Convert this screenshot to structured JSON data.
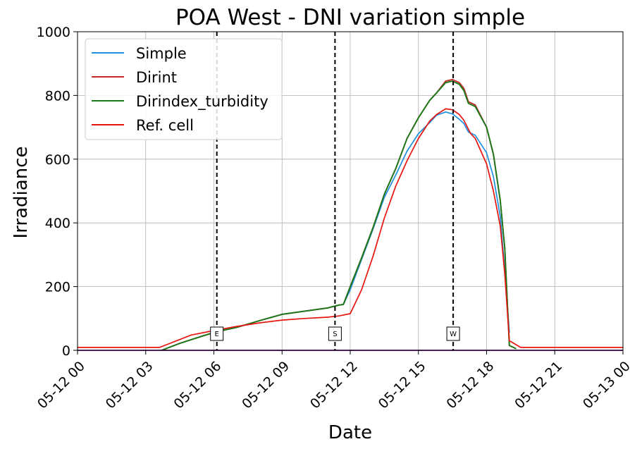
{
  "chart_data": {
    "type": "line",
    "title": "POA West - DNI variation simple",
    "xlabel": "Date",
    "ylabel": "Irradiance",
    "ylim": [
      0,
      1000
    ],
    "xlim": [
      "05-12 00:00",
      "05-13 00:00"
    ],
    "grid": true,
    "legend_position": "upper-left",
    "x_ticks": [
      "05-12 00",
      "05-12 03",
      "05-12 06",
      "05-12 09",
      "05-12 12",
      "05-12 15",
      "05-12 18",
      "05-12 21",
      "05-13 00"
    ],
    "y_ticks": [
      "0",
      "200",
      "400",
      "600",
      "800",
      "1000"
    ],
    "x_unit_note": "hours after 05-12 00",
    "series": [
      {
        "name": "Simple",
        "color": "#1f8fe0",
        "points": [
          [
            3.7,
            0
          ],
          [
            4.5,
            22
          ],
          [
            5.5,
            45
          ],
          [
            6.1,
            58
          ],
          [
            7,
            72
          ],
          [
            8,
            93
          ],
          [
            9,
            113
          ],
          [
            10,
            123
          ],
          [
            11,
            133
          ],
          [
            11.5,
            142
          ],
          [
            11.7,
            144
          ],
          [
            12,
            190
          ],
          [
            12.5,
            285
          ],
          [
            13,
            380
          ],
          [
            13.5,
            480
          ],
          [
            14,
            550
          ],
          [
            14.5,
            625
          ],
          [
            15,
            680
          ],
          [
            15.5,
            715
          ],
          [
            15.8,
            738
          ],
          [
            16.2,
            748
          ],
          [
            16.5,
            742
          ],
          [
            16.8,
            725
          ],
          [
            17,
            712
          ],
          [
            17.2,
            685
          ],
          [
            17.5,
            675
          ],
          [
            18,
            620
          ],
          [
            18.3,
            545
          ],
          [
            18.6,
            420
          ],
          [
            18.8,
            250
          ],
          [
            19,
            55
          ]
        ]
      },
      {
        "name": "Dirint",
        "color": "#c42a2a",
        "points": [
          [
            3.7,
            0
          ],
          [
            4.5,
            22
          ],
          [
            5.5,
            45
          ],
          [
            6.1,
            58
          ],
          [
            7,
            72
          ],
          [
            8,
            93
          ],
          [
            9,
            113
          ],
          [
            10,
            123
          ],
          [
            11,
            133
          ],
          [
            11.5,
            142
          ],
          [
            11.7,
            144
          ],
          [
            12,
            200
          ],
          [
            12.5,
            290
          ],
          [
            13,
            385
          ],
          [
            13.5,
            490
          ],
          [
            14,
            570
          ],
          [
            14.5,
            665
          ],
          [
            15,
            730
          ],
          [
            15.5,
            785
          ],
          [
            15.8,
            808
          ],
          [
            16.2,
            845
          ],
          [
            16.5,
            850
          ],
          [
            16.8,
            840
          ],
          [
            17,
            822
          ],
          [
            17.2,
            780
          ],
          [
            17.5,
            770
          ],
          [
            18,
            700
          ],
          [
            18.3,
            615
          ],
          [
            18.6,
            470
          ],
          [
            18.8,
            320
          ],
          [
            19,
            15
          ],
          [
            19.3,
            5
          ]
        ]
      },
      {
        "name": "Dirindex_turbidity",
        "color": "#1a7a1a",
        "points": [
          [
            3.7,
            0
          ],
          [
            4.5,
            22
          ],
          [
            5.5,
            45
          ],
          [
            6.1,
            58
          ],
          [
            7,
            72
          ],
          [
            8,
            93
          ],
          [
            9,
            113
          ],
          [
            10,
            123
          ],
          [
            11,
            133
          ],
          [
            11.5,
            142
          ],
          [
            11.7,
            144
          ],
          [
            12,
            200
          ],
          [
            12.5,
            290
          ],
          [
            13,
            385
          ],
          [
            13.5,
            490
          ],
          [
            14,
            570
          ],
          [
            14.5,
            665
          ],
          [
            15,
            730
          ],
          [
            15.5,
            785
          ],
          [
            15.8,
            808
          ],
          [
            16.2,
            840
          ],
          [
            16.5,
            845
          ],
          [
            16.8,
            835
          ],
          [
            17,
            815
          ],
          [
            17.2,
            775
          ],
          [
            17.5,
            765
          ],
          [
            18,
            700
          ],
          [
            18.3,
            615
          ],
          [
            18.6,
            470
          ],
          [
            18.8,
            320
          ],
          [
            19,
            15
          ],
          [
            19.3,
            5
          ]
        ]
      },
      {
        "name": "Ref. cell",
        "color": "#e8150f",
        "points": [
          [
            0,
            9
          ],
          [
            3.6,
            9
          ],
          [
            4,
            20
          ],
          [
            5,
            48
          ],
          [
            6,
            62
          ],
          [
            7,
            75
          ],
          [
            8,
            86
          ],
          [
            9,
            95
          ],
          [
            10,
            100
          ],
          [
            11,
            104
          ],
          [
            11.5,
            108
          ],
          [
            12,
            115
          ],
          [
            12.5,
            190
          ],
          [
            13,
            295
          ],
          [
            13.5,
            415
          ],
          [
            14,
            515
          ],
          [
            14.5,
            595
          ],
          [
            15,
            665
          ],
          [
            15.5,
            720
          ],
          [
            15.8,
            740
          ],
          [
            16.2,
            758
          ],
          [
            16.5,
            755
          ],
          [
            16.8,
            740
          ],
          [
            17,
            722
          ],
          [
            17.3,
            680
          ],
          [
            17.5,
            665
          ],
          [
            18,
            585
          ],
          [
            18.3,
            500
          ],
          [
            18.6,
            390
          ],
          [
            18.8,
            240
          ],
          [
            19,
            30
          ],
          [
            19.5,
            9
          ],
          [
            24,
            9
          ]
        ]
      },
      {
        "name": "",
        "color": "#5a0080",
        "points": [
          [
            0,
            0
          ],
          [
            24,
            0
          ]
        ]
      }
    ],
    "markers": [
      {
        "x": 6.13,
        "label": "E"
      },
      {
        "x": 11.33,
        "label": "S"
      },
      {
        "x": 16.53,
        "label": "W"
      }
    ]
  }
}
